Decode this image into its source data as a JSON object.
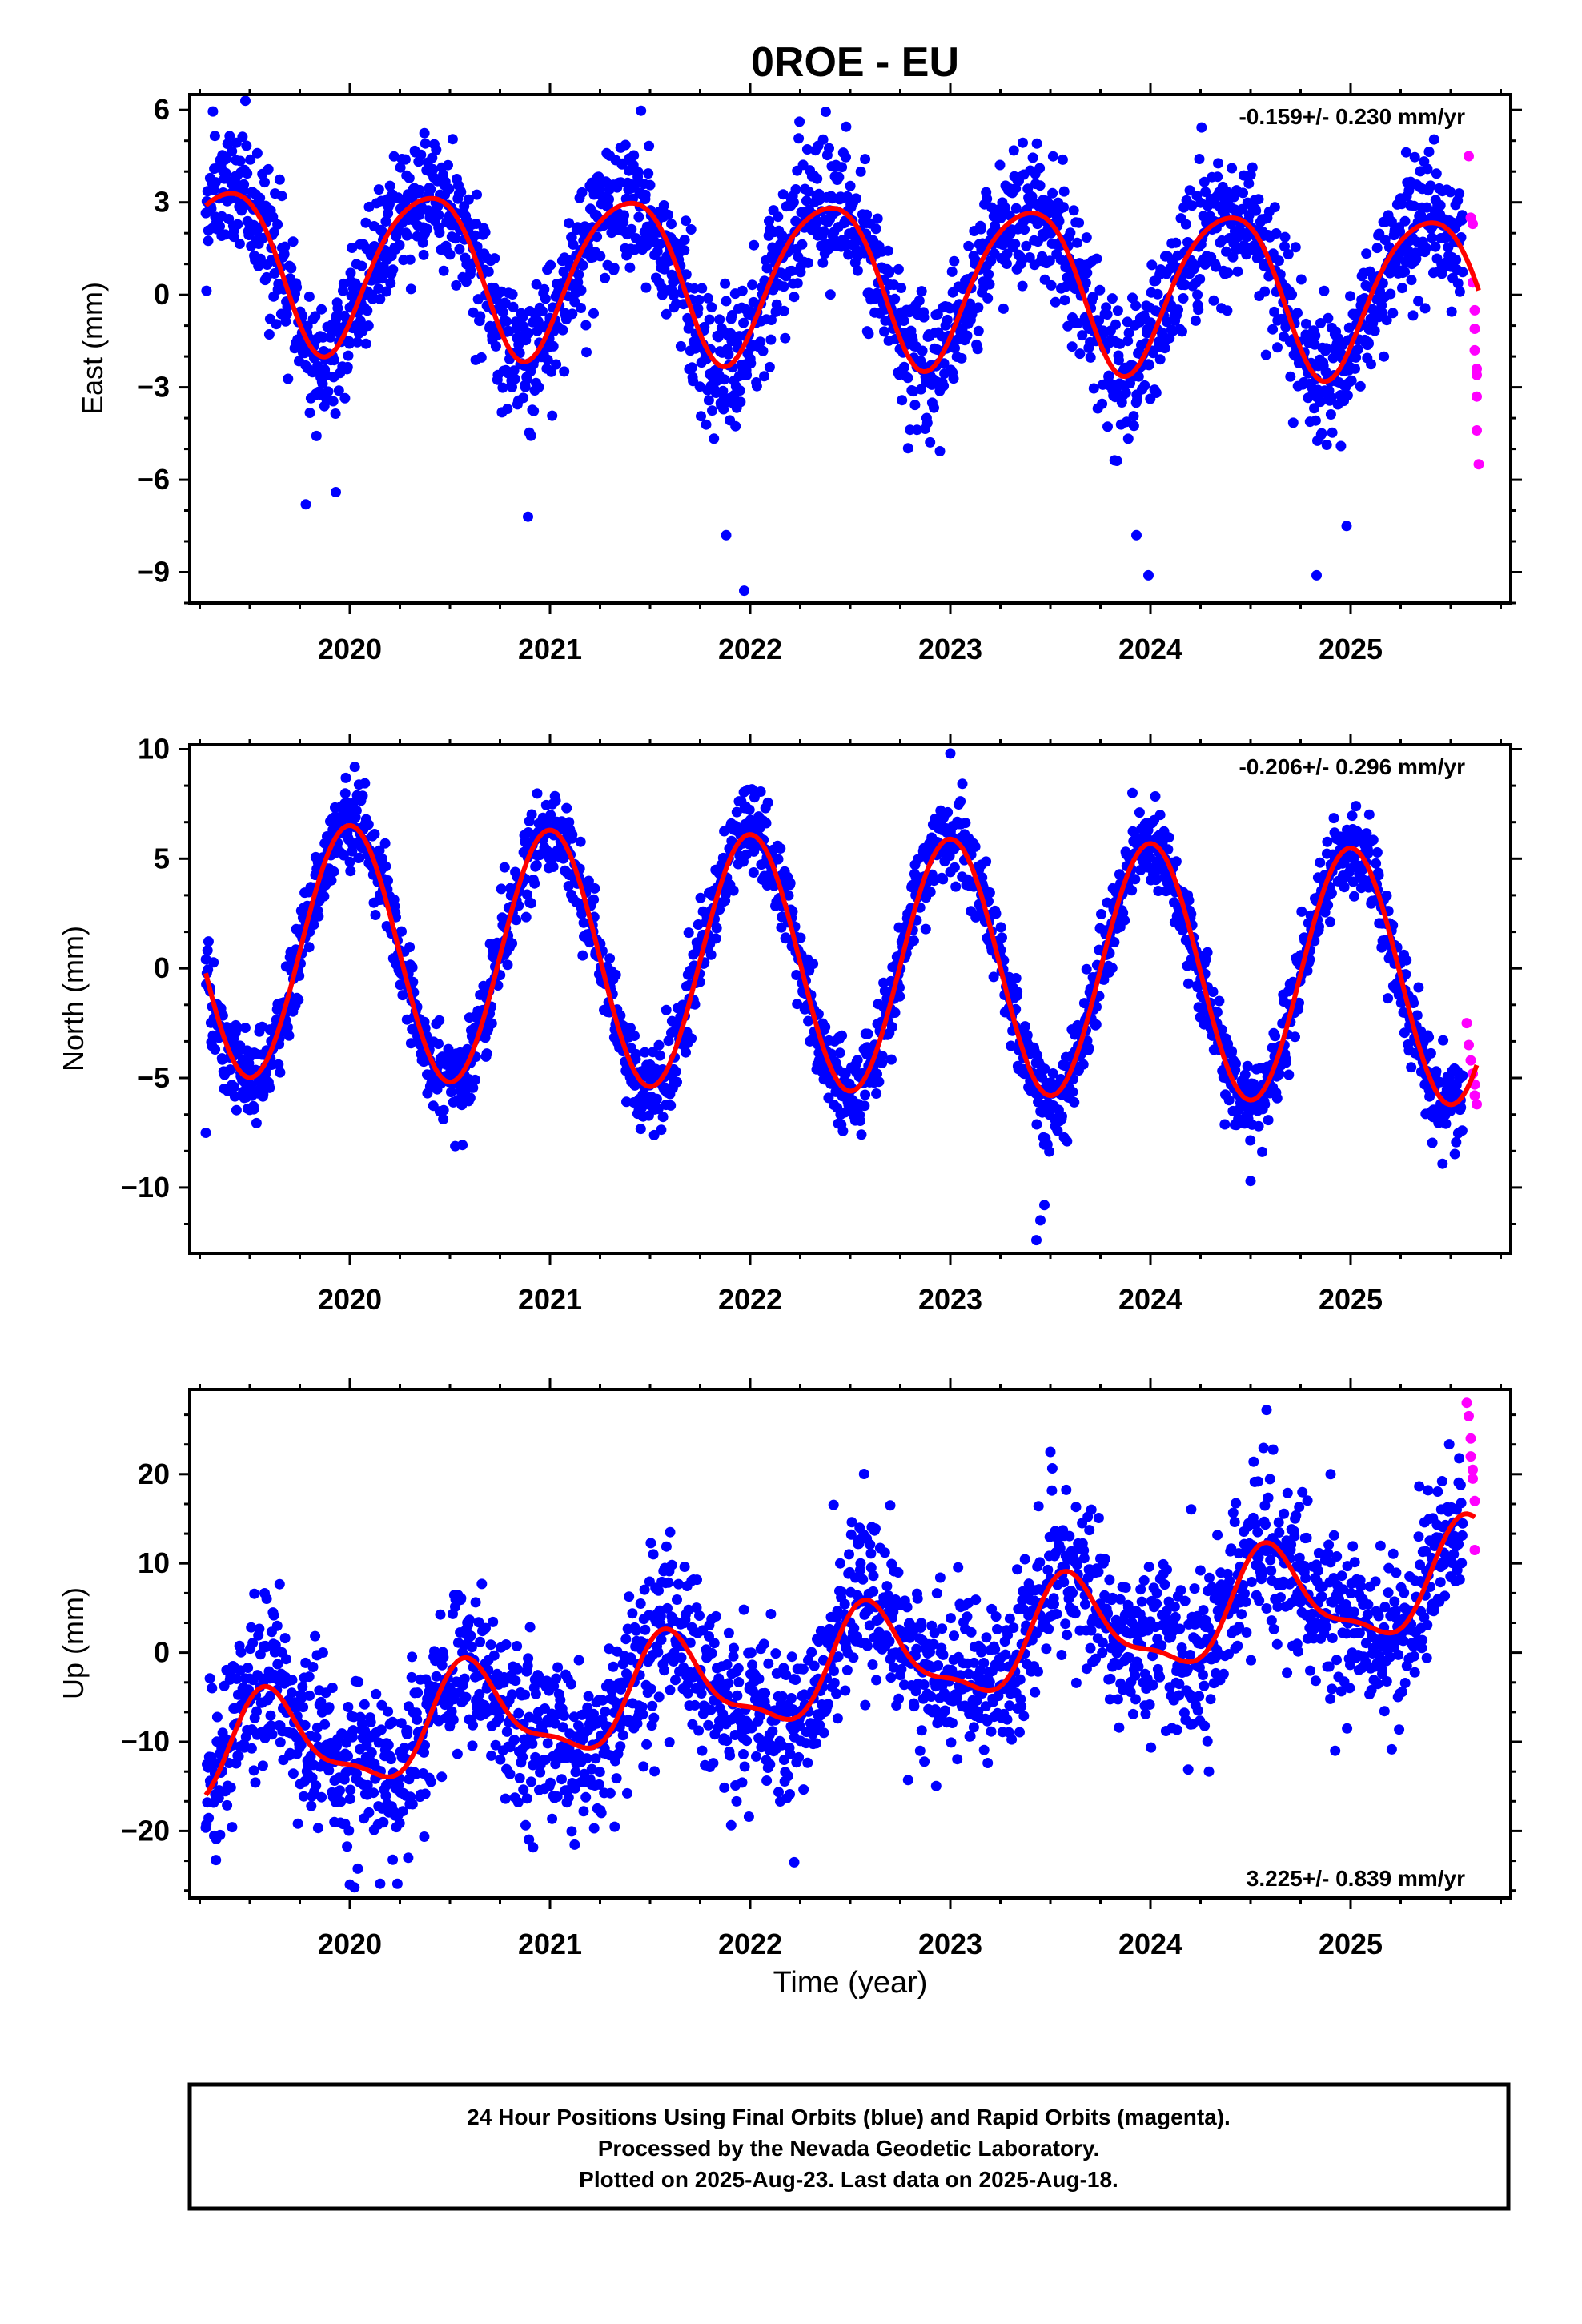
{
  "title": "0ROE - EU",
  "xlabel": "Time (year)",
  "caption": [
    "24 Hour Positions Using Final Orbits (blue) and Rapid Orbits (magenta).",
    "Processed by the Nevada Geodetic Laboratory.",
    "Plotted on 2025-Aug-23. Last data on 2025-Aug-18."
  ],
  "colors": {
    "final_orbits": "#0000ff",
    "rapid_orbits": "#ff00ff",
    "fit_line": "#ff0000",
    "frame": "#000000"
  },
  "chart_data": [
    {
      "type": "scatter",
      "component": "East",
      "ylabel": "East (mm)",
      "rate": "-0.159+/- 0.230 mm/yr",
      "rate_position": "top-right",
      "xlim": [
        2019.2,
        2025.8
      ],
      "ylim": [
        -10,
        6.5
      ],
      "xticks": [
        2020,
        2021,
        2022,
        2023,
        2024,
        2025
      ],
      "yticks": [
        6,
        3,
        0,
        -3,
        -6,
        -9
      ],
      "ytick_labels": [
        "6",
        "3",
        "0",
        "−3",
        "−6",
        "−9"
      ],
      "model": {
        "offset": 0.5,
        "trend_mm_per_yr": -0.159,
        "annual_amp": 2.6,
        "annual_peak": 0.38,
        "semiannual_amp": 0.35,
        "semiannual_phase": 0.1,
        "t0": 2022.5
      },
      "noise_sd": 1.1,
      "outliers": [
        [
          2019.78,
          -6.8
        ],
        [
          2019.93,
          -6.4
        ],
        [
          2020.89,
          -7.2
        ],
        [
          2021.88,
          -7.8
        ],
        [
          2021.97,
          -9.6
        ],
        [
          2023.93,
          -7.8
        ],
        [
          2023.99,
          -9.1
        ],
        [
          2024.83,
          -9.1
        ],
        [
          2024.98,
          -7.5
        ]
      ],
      "rapid_points": [
        [
          2025.59,
          4.5
        ],
        [
          2025.6,
          2.5
        ],
        [
          2025.61,
          2.3
        ],
        [
          2025.61,
          0.4
        ],
        [
          2025.62,
          -0.5
        ],
        [
          2025.62,
          -1.1
        ],
        [
          2025.62,
          -1.8
        ],
        [
          2025.63,
          -2.4
        ],
        [
          2025.63,
          -2.6
        ],
        [
          2025.63,
          -3.3
        ],
        [
          2025.63,
          -4.4
        ],
        [
          2025.64,
          -5.5
        ]
      ]
    },
    {
      "type": "scatter",
      "component": "North",
      "ylabel": "North (mm)",
      "rate": "-0.206+/- 0.296 mm/yr",
      "rate_position": "top-right",
      "xlim": [
        2019.2,
        2025.8
      ],
      "ylim": [
        -13,
        10.2
      ],
      "xticks": [
        2020,
        2021,
        2022,
        2023,
        2024,
        2025
      ],
      "yticks": [
        10,
        5,
        0,
        -5,
        -10
      ],
      "ytick_labels": [
        "10",
        "5",
        "0",
        "−5",
        "−10"
      ],
      "model": {
        "offset": 0.2,
        "trend_mm_per_yr": -0.206,
        "annual_amp": 5.8,
        "annual_peak": 0.0,
        "semiannual_amp": 0.0,
        "semiannual_phase": 0.0,
        "t0": 2022.5
      },
      "noise_sd": 1.0,
      "outliers": [
        [
          2023.0,
          9.8
        ],
        [
          2023.43,
          -12.4
        ],
        [
          2023.45,
          -11.5
        ],
        [
          2023.47,
          -10.8
        ],
        [
          2024.5,
          -9.7
        ],
        [
          2019.28,
          -7.5
        ]
      ],
      "rapid_points": [
        [
          2025.58,
          -2.5
        ],
        [
          2025.59,
          -3.5
        ],
        [
          2025.6,
          -4.2
        ],
        [
          2025.61,
          -4.8
        ],
        [
          2025.62,
          -5.3
        ],
        [
          2025.62,
          -5.8
        ],
        [
          2025.63,
          -6.2
        ]
      ]
    },
    {
      "type": "scatter",
      "component": "Up",
      "ylabel": "Up (mm)",
      "rate": "3.225+/- 0.839 mm/yr",
      "rate_position": "bottom-right",
      "xlim": [
        2019.2,
        2025.8
      ],
      "ylim": [
        -27.5,
        29.5
      ],
      "xticks": [
        2020,
        2021,
        2022,
        2023,
        2024,
        2025
      ],
      "yticks": [
        20,
        10,
        0,
        -10,
        -20
      ],
      "ytick_labels": [
        "20",
        "10",
        "0",
        "−10",
        "−20"
      ],
      "model": {
        "offset": -1.5,
        "trend_mm_per_yr": 3.225,
        "annual_amp": 5.5,
        "annual_peak": 0.6,
        "semiannual_amp": 1.8,
        "semiannual_phase": 0.55,
        "t0": 2022.5
      },
      "noise_sd": 4.5,
      "outliers": [
        [
          2020.0,
          -26.0
        ],
        [
          2022.22,
          -23.5
        ],
        [
          2024.58,
          27.2
        ],
        [
          2021.6,
          13.5
        ],
        [
          2022.7,
          16.5
        ],
        [
          2023.5,
          22.5
        ],
        [
          2024.9,
          20.0
        ]
      ],
      "rapid_points": [
        [
          2025.58,
          28.0
        ],
        [
          2025.59,
          26.5
        ],
        [
          2025.6,
          24.0
        ],
        [
          2025.6,
          22.0
        ],
        [
          2025.61,
          20.5
        ],
        [
          2025.61,
          19.5
        ],
        [
          2025.62,
          17.0
        ],
        [
          2025.62,
          11.5
        ]
      ]
    }
  ]
}
